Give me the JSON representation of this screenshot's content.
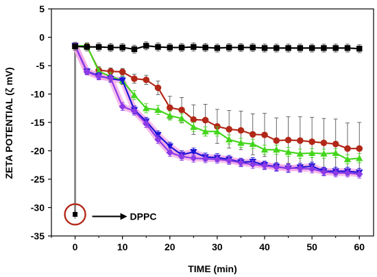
{
  "chart_data": {
    "type": "line",
    "xlabel": "TIME (min)",
    "ylabel": "ZETA POTENTIAL (ζ mV)",
    "xlim": [
      -5,
      63
    ],
    "ylim": [
      -35,
      5
    ],
    "xticks": [
      0,
      10,
      20,
      30,
      40,
      50,
      60
    ],
    "yticks": [
      5,
      0,
      -5,
      -10,
      -15,
      -20,
      -25,
      -30,
      -35
    ],
    "grid": false,
    "x": [
      0,
      2.5,
      5,
      7.5,
      10,
      12.5,
      15,
      17.5,
      20,
      22.5,
      25,
      27.5,
      30,
      32.5,
      35,
      37.5,
      40,
      42.5,
      45,
      47.5,
      50,
      52.5,
      55,
      57.5,
      60
    ],
    "series": [
      {
        "color": "#000000",
        "marker": "square",
        "values": [
          -1.6,
          -1.7,
          -1.7,
          -1.8,
          -1.8,
          -2.1,
          -1.5,
          -1.7,
          -1.8,
          -1.8,
          -1.7,
          -1.8,
          -1.9,
          -1.8,
          -1.8,
          -1.8,
          -1.9,
          -1.9,
          -1.9,
          -1.9,
          -1.9,
          -1.9,
          -1.9,
          -1.9,
          -2.0
        ],
        "errors": [
          0.7,
          0.7,
          0.7,
          0.7,
          0.7,
          0.7,
          0.7,
          0.7,
          0.7,
          0.7,
          0.7,
          0.7,
          0.7,
          0.7,
          0.7,
          0.7,
          0.7,
          0.7,
          0.7,
          0.7,
          0.7,
          0.7,
          0.7,
          0.7,
          0.7
        ]
      },
      {
        "color": "#b22818",
        "marker": "circle",
        "values": [
          -1.5,
          -1.6,
          -5.8,
          -6.0,
          -6.1,
          -7.3,
          -7.5,
          -8.9,
          -12.4,
          -12.8,
          -14.5,
          -14.6,
          -15.7,
          -16.2,
          -16.4,
          -17.1,
          -17.2,
          -18.2,
          -18.1,
          -18.2,
          -18.4,
          -18.6,
          -18.8,
          -19.6,
          -19.6
        ],
        "errors": [
          0.5,
          0.5,
          0.6,
          0.6,
          0.6,
          0.8,
          0.8,
          1.2,
          2.0,
          2.2,
          2.6,
          2.8,
          3.0,
          3.3,
          3.4,
          3.6,
          3.8,
          4.0,
          4.1,
          4.2,
          4.3,
          4.3,
          4.4,
          4.5,
          4.6
        ]
      },
      {
        "color": "#44d61c",
        "marker": "triangle-up",
        "values": [
          -1.5,
          -1.5,
          -6.0,
          -6.9,
          -7.6,
          -10.2,
          -12.5,
          -12.8,
          -13.8,
          -14.3,
          -15.8,
          -16.6,
          -16.6,
          -18.0,
          -18.6,
          -18.8,
          -19.8,
          -19.8,
          -20.2,
          -20.5,
          -20.4,
          -20.5,
          -20.4,
          -21.5,
          -21.3
        ],
        "errors": [
          0.5,
          0.5,
          0.6,
          0.7,
          0.7,
          0.8,
          0.8,
          0.8,
          0.8,
          0.8,
          0.8,
          0.8,
          0.8,
          0.8,
          0.8,
          0.8,
          0.8,
          0.8,
          0.8,
          0.8,
          0.8,
          0.8,
          0.8,
          0.8,
          0.8
        ]
      },
      {
        "color": "#1a14d6",
        "marker": "triangle-down",
        "values": [
          -1.5,
          -6.0,
          -6.8,
          -7.3,
          -7.6,
          -12.8,
          -14.8,
          -17.2,
          -19.2,
          -20.7,
          -20.2,
          -21.1,
          -21.2,
          -21.5,
          -22.0,
          -21.9,
          -22.5,
          -22.8,
          -23.1,
          -22.9,
          -22.7,
          -23.6,
          -23.6,
          -23.6,
          -23.8
        ],
        "errors": [
          0.5,
          0.5,
          0.6,
          0.6,
          0.6,
          0.7,
          0.7,
          0.7,
          0.7,
          0.7,
          0.7,
          0.7,
          0.7,
          0.7,
          0.7,
          0.7,
          0.7,
          0.7,
          0.7,
          0.7,
          0.7,
          0.7,
          0.7,
          0.7,
          0.7
        ]
      },
      {
        "color": "#8a3ae6",
        "marker": "diamond",
        "values": [
          -1.5,
          -6.1,
          -6.9,
          -7.2,
          -12.2,
          -13.0,
          -15.2,
          -18.0,
          -20.3,
          -21.0,
          -21.3,
          -21.4,
          -21.5,
          -21.7,
          -22.1,
          -22.4,
          -22.6,
          -22.9,
          -23.0,
          -23.1,
          -23.2,
          -23.7,
          -23.9,
          -23.9,
          -24.1
        ],
        "errors": [
          0.5,
          0.5,
          0.6,
          0.6,
          0.7,
          0.7,
          0.7,
          0.7,
          0.7,
          0.7,
          0.7,
          0.7,
          0.7,
          0.7,
          0.7,
          0.7,
          0.7,
          0.7,
          0.7,
          0.7,
          0.7,
          0.7,
          0.7,
          0.7,
          0.7
        ]
      }
    ],
    "dppc_point": {
      "x": 0,
      "y": -31.2,
      "error": 0.8
    },
    "annotation": {
      "text": "DPPC",
      "target": "dppc_point",
      "circle_color": "#b22818"
    },
    "vertical_guide": {
      "x": 0,
      "from_y": -1.5,
      "to_y": -31.2,
      "color": "#8a8a8a"
    },
    "highlight_color": "#f4a6e6"
  }
}
